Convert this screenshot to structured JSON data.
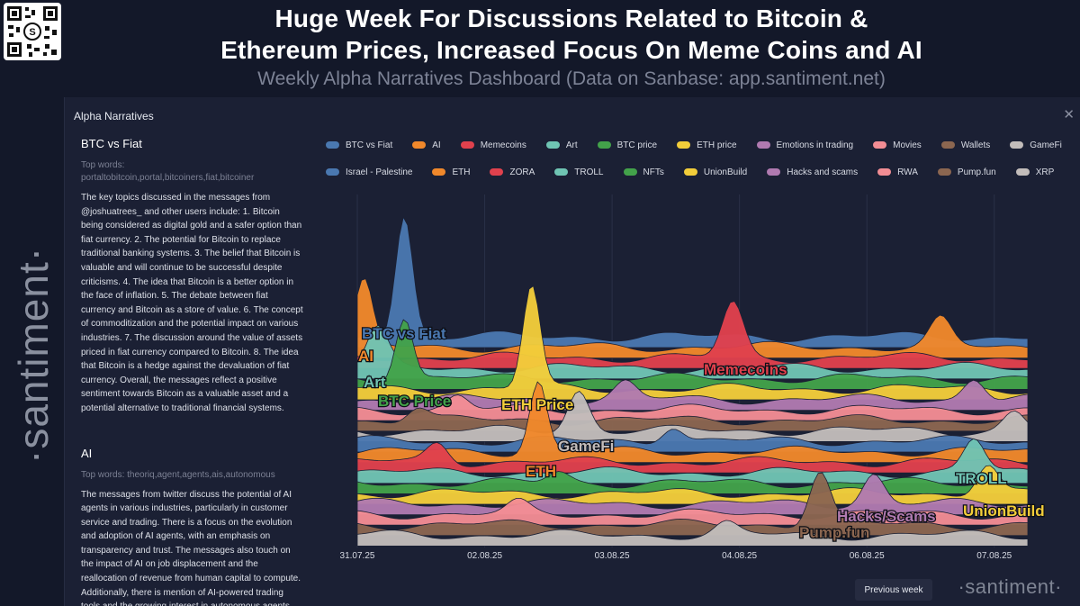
{
  "header": {
    "headline_line1": "Huge Week For Discussions Related to Bitcoin &",
    "headline_line2": "Ethereum Prices, Increased Focus On Meme Coins and AI",
    "subtitle": "Weekly Alpha Narratives Dashboard (Data on Sanbase: app.santiment.net)"
  },
  "brand": {
    "rail": "·santiment·",
    "footer": "·santiment·"
  },
  "panel": {
    "title": "Alpha Narratives",
    "close_label": "✕",
    "previous_week_label": "Previous week"
  },
  "narratives": [
    {
      "name": "BTC vs Fiat",
      "top_words_label": "Top words:",
      "top_words": "portaltobitcoin,portal,bitcoiners,fiat,bitcoiner",
      "summary": "The key topics discussed in the messages from @joshuatrees_ and other users include: 1. Bitcoin being considered as digital gold and a safer option than fiat currency. 2. The potential for Bitcoin to replace traditional banking systems. 3. The belief that Bitcoin is valuable and will continue to be successful despite criticisms. 4. The idea that Bitcoin is a better option in the face of inflation. 5. The debate between fiat currency and Bitcoin as a store of value. 6. The concept of commoditization and the potential impact on various industries. 7. The discussion around the value of assets priced in fiat currency compared to Bitcoin. 8. The idea that Bitcoin is a hedge against the devaluation of fiat currency. Overall, the messages reflect a positive sentiment towards Bitcoin as a valuable asset and a potential alternative to traditional financial systems."
    },
    {
      "name": "AI",
      "top_words_label": "Top words:",
      "top_words": "theoriq,agent,agents,ais,autonomous",
      "summary": "The messages from twitter discuss the potential of AI agents in various industries, particularly in customer service and trading. There is a focus on the evolution and adoption of AI agents, with an emphasis on transparency and trust. The messages also touch on the impact of AI on job displacement and the reallocation of revenue from human capital to compute. Additionally, there is mention of AI-powered trading tools and the growing interest in autonomous agents."
    }
  ],
  "chart_data": {
    "type": "area",
    "subtype": "ridgeline",
    "title": "Alpha Narratives",
    "x": [
      "31.07.25",
      "02.08.25",
      "03.08.25",
      "04.08.25",
      "06.08.25",
      "07.08.25"
    ],
    "series": [
      {
        "name": "BTC vs Fiat",
        "color": "#4a78b0",
        "peaks": [
          {
            "x": 0.07,
            "h": 4.5
          }
        ]
      },
      {
        "name": "AI",
        "color": "#f0882b",
        "peaks": [
          {
            "x": 0.01,
            "h": 2.4
          },
          {
            "x": 0.87,
            "h": 1.0
          }
        ]
      },
      {
        "name": "Memecoins",
        "color": "#e0414d",
        "peaks": [
          {
            "x": 0.56,
            "h": 2.0
          }
        ]
      },
      {
        "name": "Art",
        "color": "#6fc4b3",
        "peaks": [
          {
            "x": 0.03,
            "h": 1.4
          }
        ]
      },
      {
        "name": "BTC price",
        "color": "#43a24a",
        "peaks": [
          {
            "x": 0.07,
            "h": 2.3
          }
        ]
      },
      {
        "name": "ETH price",
        "color": "#f2cd3a",
        "peaks": [
          {
            "x": 0.26,
            "h": 3.8
          }
        ]
      },
      {
        "name": "Emotions in trading",
        "color": "#b07ab0",
        "peaks": [
          {
            "x": 0.4,
            "h": 0.6
          },
          {
            "x": 0.92,
            "h": 0.8
          }
        ]
      },
      {
        "name": "Movies",
        "color": "#f28d94",
        "peaks": [
          {
            "x": 0.15,
            "h": 0.5
          }
        ]
      },
      {
        "name": "Wallets",
        "color": "#8b6650",
        "peaks": [
          {
            "x": 0.09,
            "h": 0.5
          }
        ]
      },
      {
        "name": "GameFi",
        "color": "#c2bcba",
        "peaks": [
          {
            "x": 0.33,
            "h": 1.5
          },
          {
            "x": 0.98,
            "h": 0.7
          }
        ]
      },
      {
        "name": "Israel - Palestine",
        "color": "#4a78b0",
        "peaks": [
          {
            "x": 0.47,
            "h": 0.6
          }
        ]
      },
      {
        "name": "ETH",
        "color": "#f0882b",
        "peaks": [
          {
            "x": 0.27,
            "h": 2.6
          }
        ]
      },
      {
        "name": "ZORA",
        "color": "#e0414d",
        "peaks": [
          {
            "x": 0.12,
            "h": 0.7
          }
        ]
      },
      {
        "name": "TROLL",
        "color": "#6fc4b3",
        "peaks": [
          {
            "x": 0.92,
            "h": 1.2
          }
        ]
      },
      {
        "name": "NFTs",
        "color": "#43a24a",
        "peaks": [
          {
            "x": 0.3,
            "h": 0.4
          }
        ]
      },
      {
        "name": "UnionBuild",
        "color": "#f2cd3a",
        "peaks": [
          {
            "x": 0.94,
            "h": 1.1
          }
        ]
      },
      {
        "name": "Hacks and scams",
        "color": "#b07ab0",
        "peaks": [
          {
            "x": 0.77,
            "h": 1.1
          }
        ]
      },
      {
        "name": "RWA",
        "color": "#f28d94",
        "peaks": [
          {
            "x": 0.24,
            "h": 0.4
          }
        ]
      },
      {
        "name": "Pump.fun",
        "color": "#8b6650",
        "peaks": [
          {
            "x": 0.69,
            "h": 2.0
          }
        ]
      },
      {
        "name": "XRP",
        "color": "#c2bcba",
        "peaks": [
          {
            "x": 0.55,
            "h": 0.4
          }
        ]
      }
    ]
  },
  "callouts": [
    {
      "label": "BTC vs Fiat",
      "color": "#4a78b0"
    },
    {
      "label": "AI",
      "color": "#f0882b"
    },
    {
      "label": "Art",
      "color": "#6fc4b3"
    },
    {
      "label": "BTC Price",
      "color": "#43a24a"
    },
    {
      "label": "ETH Price",
      "color": "#f2cd3a"
    },
    {
      "label": "Memecoins",
      "color": "#e0414d"
    },
    {
      "label": "GameFi",
      "color": "#c2bcba"
    },
    {
      "label": "ETH",
      "color": "#f0882b"
    },
    {
      "label": "TROLL",
      "color": "#6fc4b3"
    },
    {
      "label": "UnionBuild",
      "color": "#f2cd3a"
    },
    {
      "label": "Hacks/Scams",
      "color": "#b07ab0"
    },
    {
      "label": "Pump.fun",
      "color": "#8b6650"
    }
  ]
}
